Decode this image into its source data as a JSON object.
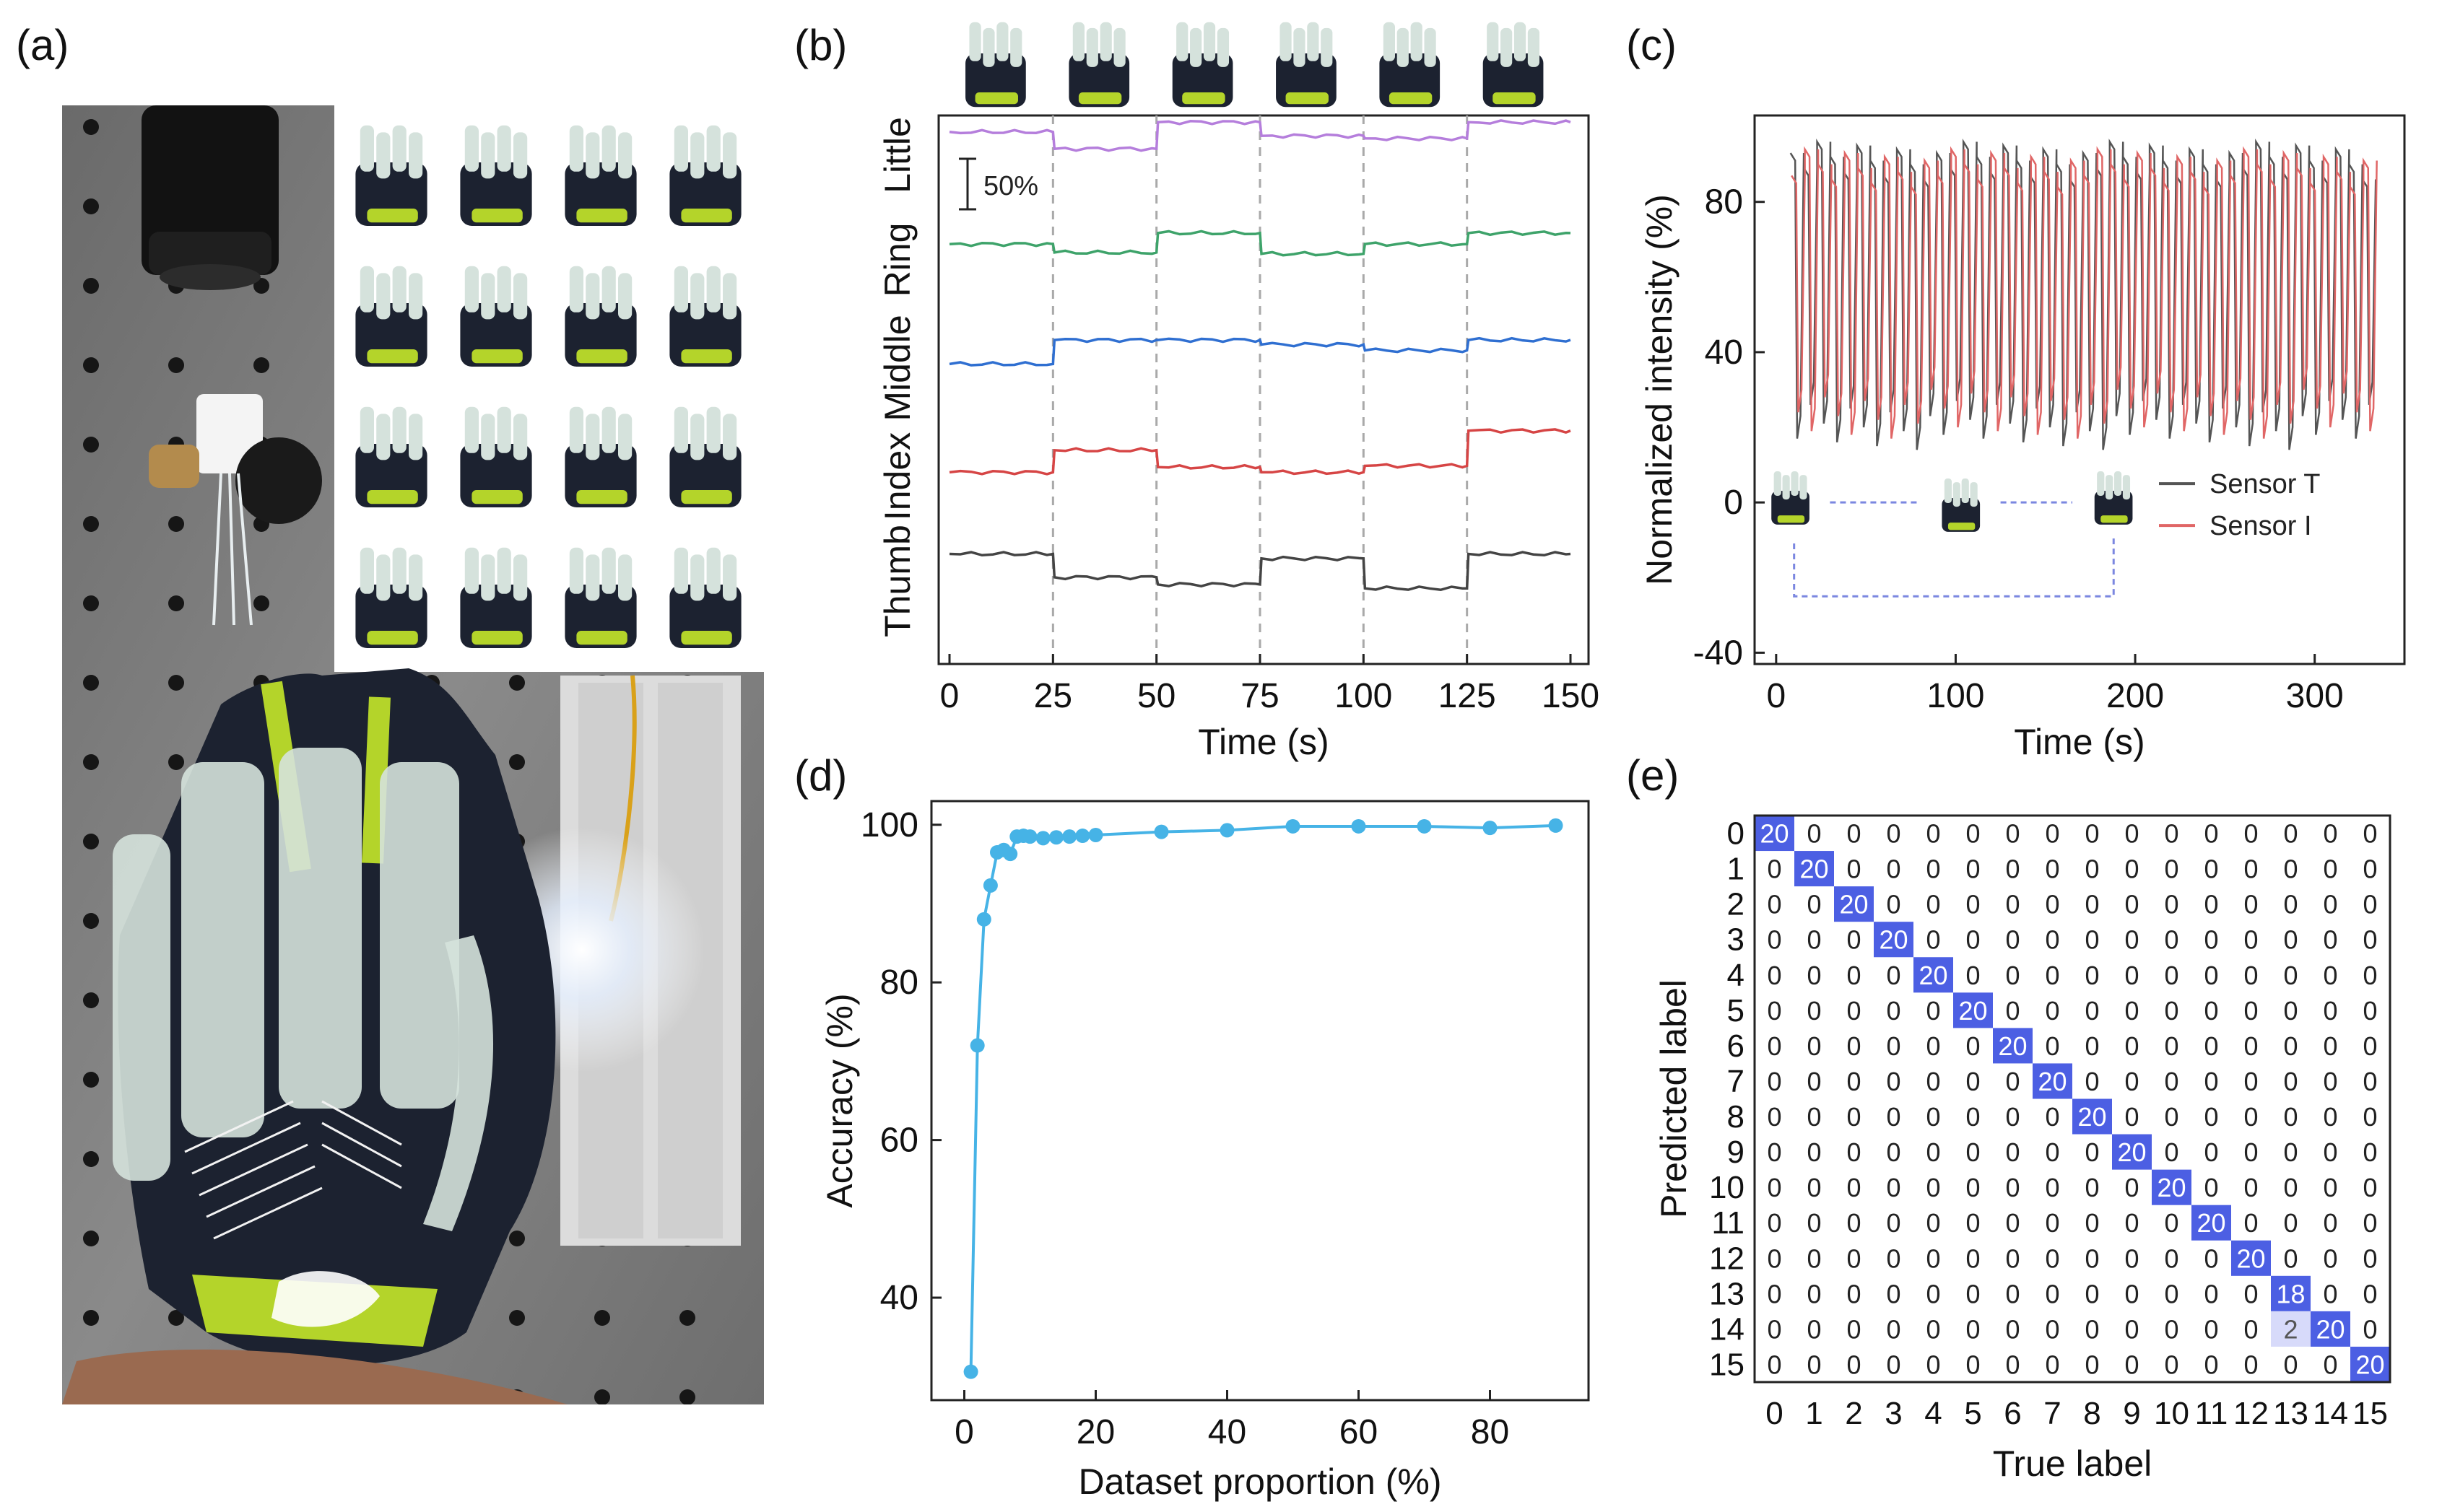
{
  "panel_labels": {
    "a": "(a)",
    "b": "(b)",
    "c": "(c)",
    "d": "(d)",
    "e": "(e)"
  },
  "colors": {
    "little": "#b57edc",
    "ring": "#3ea36a",
    "middle": "#2f6fd1",
    "index": "#d64545",
    "thumb": "#444444",
    "sensor_t": "#555555",
    "sensor_i": "#e06666",
    "accuracy": "#46b3e6",
    "diag": "#4c5fe3",
    "offdiag": "#d7dafa",
    "dash": "#a9a9a9",
    "arrow": "#7b87e0",
    "plate": "#7f7f7f",
    "glove_dark": "#1c2230",
    "glove_lime": "#b4d42a",
    "silicone": "#d5e2dc"
  },
  "photo_icons": {
    "board": "breadboard-icon",
    "led": "led-glow-icon",
    "lens": "objective-lens-icon"
  },
  "chart_data": [
    {
      "id": "b",
      "type": "line",
      "xlabel": "Time (s)",
      "x_ticks": [
        "0",
        "25",
        "50",
        "75",
        "100",
        "125",
        "150"
      ],
      "xlim": [
        0,
        150
      ],
      "channel_labels": [
        "Thumb",
        "Index",
        "Middle",
        "Ring",
        "Little"
      ],
      "scale_bar_label": "50%",
      "gesture_boundaries_s": [
        25,
        50,
        75,
        100,
        125
      ],
      "gesture_count": 6,
      "series": [
        {
          "name": "Little",
          "levels": [
            0.88,
            0.62,
            1.03,
            0.82,
            0.78,
            1.03
          ]
        },
        {
          "name": "Ring",
          "levels": [
            0.82,
            0.69,
            0.99,
            0.67,
            0.82,
            0.99
          ]
        },
        {
          "name": "Middle",
          "levels": [
            0.64,
            1.01,
            1.01,
            0.94,
            0.85,
            1.01
          ]
        },
        {
          "name": "Index",
          "levels": [
            0.64,
            0.98,
            0.72,
            0.64,
            0.74,
            1.28
          ]
        },
        {
          "name": "Thumb",
          "levels": [
            1.05,
            0.69,
            0.58,
            0.98,
            0.52,
            1.05
          ]
        }
      ]
    },
    {
      "id": "c",
      "type": "line",
      "xlabel": "Time (s)",
      "ylabel": "Normalized intensity (%)",
      "x_ticks": [
        "0",
        "100",
        "200",
        "300"
      ],
      "y_ticks": [
        "-40",
        "0",
        "40",
        "80"
      ],
      "xlim": [
        -12,
        350
      ],
      "ylim": [
        -43,
        103
      ],
      "cycle_start_s": 8,
      "cycle_end_s": 334,
      "cycle_count": 44,
      "series": [
        {
          "name": "Sensor T",
          "high": 96,
          "low": 14
        },
        {
          "name": "Sensor I",
          "high": 94,
          "low": 17
        }
      ]
    },
    {
      "id": "d",
      "type": "line",
      "xlabel": "Dataset proportion (%)",
      "ylabel": "Accuracy (%)",
      "x_ticks": [
        "0",
        "20",
        "40",
        "60",
        "80"
      ],
      "y_ticks": [
        "40",
        "60",
        "80",
        "100"
      ],
      "xlim": [
        -5,
        95
      ],
      "ylim": [
        27,
        103
      ],
      "x": [
        1,
        2,
        3,
        4,
        5,
        6,
        7,
        8,
        9,
        10,
        12,
        14,
        16,
        18,
        20,
        30,
        40,
        50,
        60,
        70,
        80,
        90
      ],
      "y": [
        30.6,
        72,
        88,
        92.3,
        96.5,
        96.8,
        96.3,
        98.5,
        98.6,
        98.5,
        98.3,
        98.4,
        98.5,
        98.6,
        98.7,
        99.1,
        99.3,
        99.8,
        99.8,
        99.8,
        99.6,
        99.9
      ]
    },
    {
      "id": "e",
      "type": "heatmap",
      "xlabel": "True label",
      "ylabel": "Predicted label",
      "labels": [
        "0",
        "1",
        "2",
        "3",
        "4",
        "5",
        "6",
        "7",
        "8",
        "9",
        "10",
        "11",
        "12",
        "13",
        "14",
        "15"
      ],
      "diagonal": [
        20,
        20,
        20,
        20,
        20,
        20,
        20,
        20,
        20,
        20,
        20,
        20,
        20,
        18,
        20,
        20
      ],
      "off_diagonal": [
        {
          "row": 14,
          "col": 13,
          "value": 2
        }
      ]
    }
  ],
  "legend_c": [
    "Sensor T",
    "Sensor I"
  ]
}
